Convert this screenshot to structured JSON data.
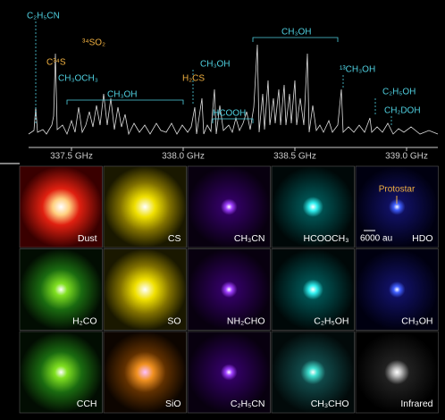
{
  "spectrum": {
    "annotations": [
      {
        "label": "C₂H₅CN",
        "color": "cyan"
      },
      {
        "label": "C³⁴S",
        "color": "orange"
      },
      {
        "label": "³⁴SO₂",
        "color": "orange"
      },
      {
        "label": "CH₃OCH₃",
        "color": "cyan"
      },
      {
        "label": "CH₃OH",
        "color": "cyan"
      },
      {
        "label": "H₂CS",
        "color": "orange"
      },
      {
        "label": "CH₃OH",
        "color": "cyan"
      },
      {
        "label": "HCOOH",
        "color": "cyan"
      },
      {
        "label": "CH₃OH",
        "color": "cyan"
      },
      {
        "label": "¹³CH₃OH",
        "color": "cyan"
      },
      {
        "label": "C₂H₅OH",
        "color": "cyan"
      },
      {
        "label": "CH₂DOH",
        "color": "cyan"
      }
    ],
    "x_ticks": [
      "337.5 GHz",
      "338.0 GHz",
      "338.5 GHz",
      "339.0 GHz"
    ]
  },
  "panels": [
    {
      "label": "Dust",
      "tone": "red"
    },
    {
      "label": "CS",
      "tone": "yellow"
    },
    {
      "label": "CH₃CN",
      "tone": "purple"
    },
    {
      "label": "HCOOCH₃",
      "tone": "cyan"
    },
    {
      "label": "HDO",
      "tone": "blue"
    },
    {
      "label": "H₂CO",
      "tone": "green"
    },
    {
      "label": "SO",
      "tone": "yellow"
    },
    {
      "label": "NH₂CHO",
      "tone": "purple"
    },
    {
      "label": "C₂H₅OH",
      "tone": "cyan"
    },
    {
      "label": "CH₃OH",
      "tone": "blue"
    },
    {
      "label": "CCH",
      "tone": "green"
    },
    {
      "label": "SiO",
      "tone": "orange"
    },
    {
      "label": "C₂H₅CN",
      "tone": "purple"
    },
    {
      "label": "CH₃CHO",
      "tone": "teal"
    },
    {
      "label": "Infrared",
      "tone": "ir"
    }
  ],
  "protostar_label": "Protostar",
  "scale_label": "6000 au"
}
